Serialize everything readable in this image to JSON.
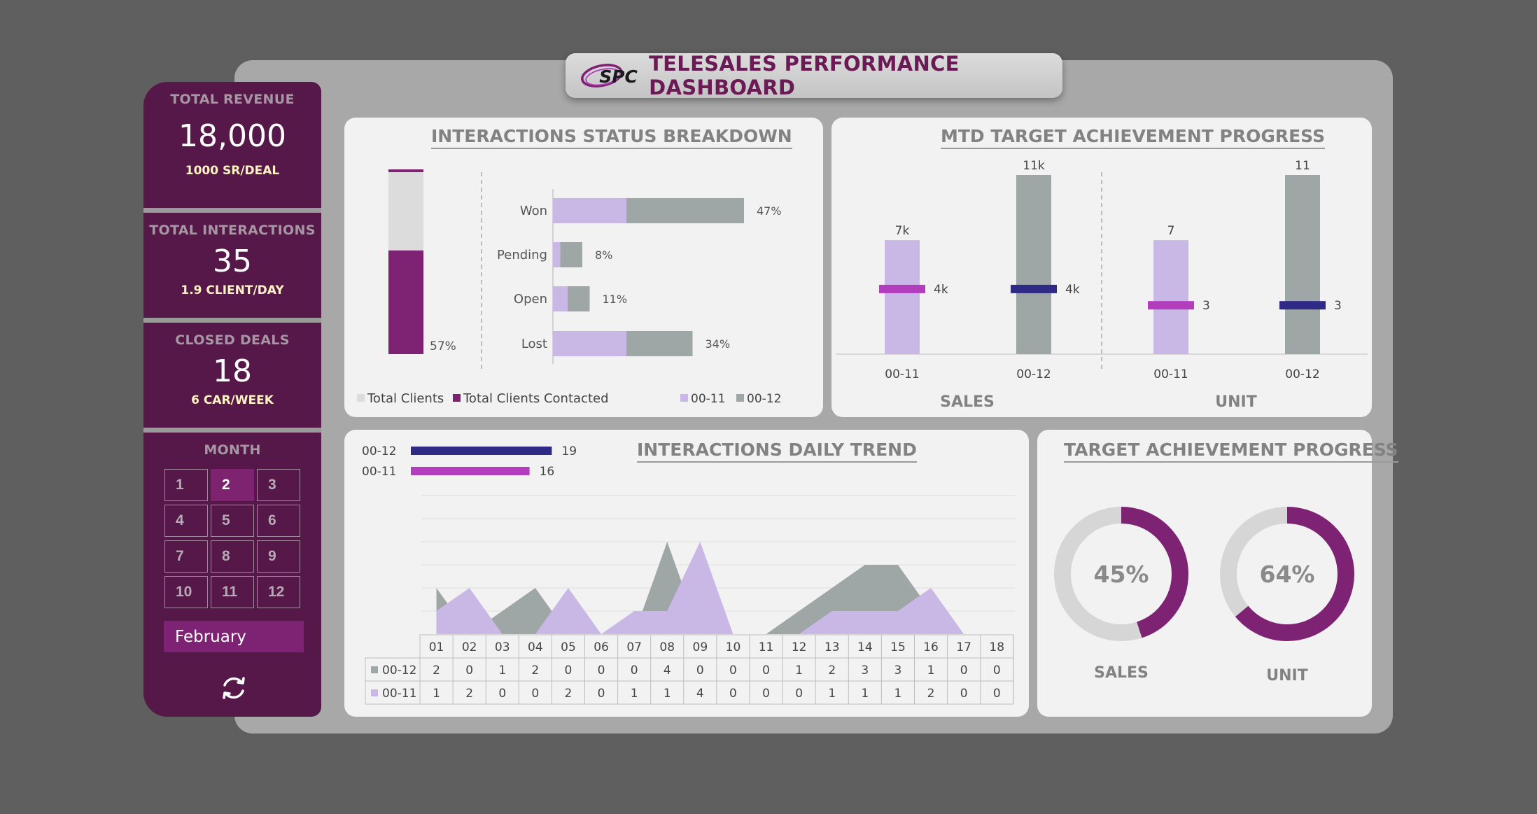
{
  "header": {
    "title": "TELESALES PERFORMANCE DASHBOARD",
    "logo_text": "SPC"
  },
  "kpis": [
    {
      "label": "TOTAL REVENUE",
      "value": "18,000",
      "sub": "1000 SR/DEAL"
    },
    {
      "label": "TOTAL INTERACTIONS",
      "value": "35",
      "sub": "1.9 CLIENT/DAY"
    },
    {
      "label": "CLOSED DEALS",
      "value": "18",
      "sub": "6 CAR/WEEK"
    }
  ],
  "month_panel": {
    "label": "MONTH",
    "months": [
      "1",
      "2",
      "3",
      "4",
      "5",
      "6",
      "7",
      "8",
      "9",
      "10",
      "11",
      "12"
    ],
    "selected": "2",
    "selected_name": "February",
    "refresh_icon": "refresh-icon"
  },
  "colors": {
    "dark_purple": "#551848",
    "accent_purple": "#7e2373",
    "light_purple": "#c9b8e6",
    "gray": "#9ea7a6",
    "navy": "#2e2a85",
    "magenta": "#b23ebd"
  },
  "chart_data": [
    {
      "id": "interactions-status",
      "title": "INTERACTIONS STATUS BREAKDOWN",
      "type": "bar",
      "contacted": {
        "percent_label": "57%",
        "fraction": 0.57
      },
      "categories": [
        "Won",
        "Pending",
        "Open",
        "Lost"
      ],
      "series": [
        {
          "name": "00-11",
          "values": [
            10,
            1,
            2,
            10
          ]
        },
        {
          "name": "00-12",
          "values": [
            16,
            3,
            3,
            9
          ]
        }
      ],
      "share_labels": [
        "47%",
        "8%",
        "11%",
        "34%"
      ],
      "legend": [
        "Total Clients",
        "Total Clients Contacted",
        "00-11",
        "00-12"
      ]
    },
    {
      "id": "mtd-target",
      "title": "MTD TARGET ACHIEVEMENT PROGRESS",
      "type": "bar",
      "groups": [
        {
          "name": "SALES",
          "categories": [
            "00-11",
            "00-12"
          ],
          "targets": [
            7,
            11
          ],
          "target_labels": [
            "7k",
            "11k"
          ],
          "actuals": [
            4,
            4
          ],
          "actual_labels": [
            "4k",
            "4k"
          ]
        },
        {
          "name": "UNIT",
          "categories": [
            "00-11",
            "00-12"
          ],
          "targets": [
            7,
            11
          ],
          "target_labels": [
            "7",
            "11"
          ],
          "actuals": [
            3,
            3
          ],
          "actual_labels": [
            "3",
            "3"
          ]
        }
      ]
    },
    {
      "id": "daily-trend",
      "title": "INTERACTIONS DAILY TREND",
      "type": "area",
      "x": [
        "01",
        "02",
        "03",
        "04",
        "05",
        "06",
        "07",
        "08",
        "09",
        "10",
        "11",
        "12",
        "13",
        "14",
        "15",
        "16",
        "17",
        "18"
      ],
      "series": [
        {
          "name": "00-12",
          "values": [
            2,
            0,
            1,
            2,
            0,
            0,
            0,
            4,
            0,
            0,
            0,
            1,
            2,
            3,
            3,
            1,
            0,
            0
          ],
          "total": 19
        },
        {
          "name": "00-11",
          "values": [
            1,
            2,
            0,
            0,
            2,
            0,
            1,
            1,
            4,
            0,
            0,
            0,
            1,
            1,
            1,
            2,
            0,
            0
          ],
          "total": 16
        }
      ]
    },
    {
      "id": "target-achievement",
      "title": "TARGET ACHIEVEMENT PROGRESS",
      "type": "pie",
      "donuts": [
        {
          "name": "SALES",
          "percent": 45,
          "label": "45%"
        },
        {
          "name": "UNIT",
          "percent": 64,
          "label": "64%"
        }
      ]
    }
  ]
}
